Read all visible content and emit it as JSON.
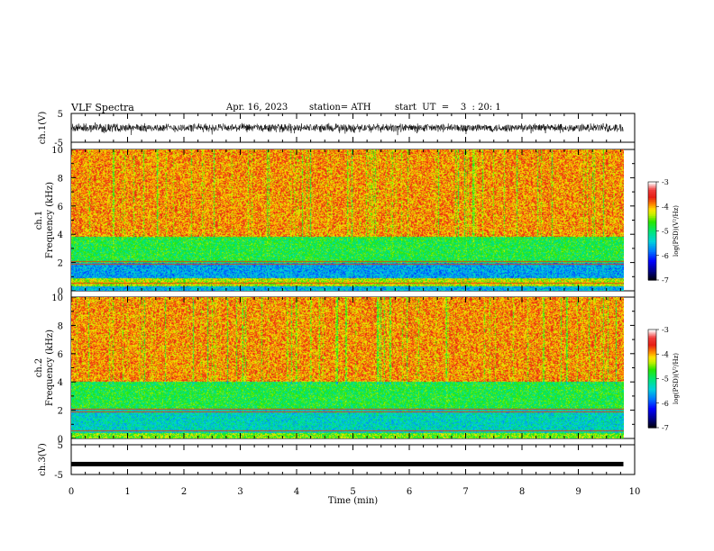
{
  "header": {
    "title": "VLF Spectra",
    "date": "Apr. 16, 2023",
    "station": "station= ATH",
    "start": "start  UT  =    3  : 20: 1"
  },
  "chart_data": [
    {
      "id": "ch1_waveform",
      "type": "line",
      "ylabel": "ch.1(V)",
      "ylim": [
        -5,
        5
      ],
      "yticks": [
        "5",
        "-5"
      ],
      "x_extent_min": [
        0,
        9.8
      ],
      "amplitude_V": 1.5
    },
    {
      "id": "ch1_spectrogram",
      "type": "heatmap",
      "ylabel_line1": "ch.1",
      "ylabel_line2": "Frequency  (kHz)",
      "ylim": [
        0,
        10
      ],
      "yticks": [
        "0",
        "2",
        "4",
        "6",
        "8",
        "10"
      ],
      "bands_kHz": [
        {
          "from": 0,
          "to": 0.3,
          "level": -5.5
        },
        {
          "from": 0.3,
          "to": 0.9,
          "level": -4.3
        },
        {
          "from": 0.9,
          "to": 2.0,
          "level": -5.6
        },
        {
          "from": 2.0,
          "to": 3.8,
          "level": -4.8
        },
        {
          "from": 3.8,
          "to": 10,
          "level": -3.9
        }
      ],
      "colorbar": {
        "label": "log(PSD)(V²/Hz)",
        "ticks": [
          "-3",
          "-4",
          "-5",
          "-6",
          "-7"
        ],
        "range": [
          -7,
          -3
        ]
      }
    },
    {
      "id": "ch2_spectrogram",
      "type": "heatmap",
      "ylabel_line1": "ch.2",
      "ylabel_line2": "Frequency  (kHz)",
      "ylim": [
        0,
        10
      ],
      "yticks": [
        "0",
        "2",
        "4",
        "6",
        "8",
        "10"
      ],
      "bands_kHz": [
        {
          "from": 0,
          "to": 0.4,
          "level": -4.5
        },
        {
          "from": 0.4,
          "to": 2.1,
          "level": -5.3
        },
        {
          "from": 2.1,
          "to": 4.0,
          "level": -4.8
        },
        {
          "from": 4.0,
          "to": 10,
          "level": -3.9
        }
      ],
      "colorbar": {
        "label": "log(PSD)(V²/Hz)",
        "ticks": [
          "-3",
          "-4",
          "-5",
          "-6",
          "-7"
        ],
        "range": [
          -7,
          -3
        ]
      }
    },
    {
      "id": "ch3_waveform",
      "type": "line",
      "ylabel": "ch.3(V)",
      "ylim": [
        -5,
        5
      ],
      "yticks": [
        "5",
        "-5"
      ],
      "x_extent_min": [
        0,
        9.8
      ],
      "offset_V": -1.5
    }
  ],
  "x_axis": {
    "label": "Time  (min)",
    "range": [
      0,
      10
    ],
    "ticks": [
      "0",
      "1",
      "2",
      "3",
      "4",
      "5",
      "6",
      "7",
      "8",
      "9",
      "10"
    ]
  }
}
